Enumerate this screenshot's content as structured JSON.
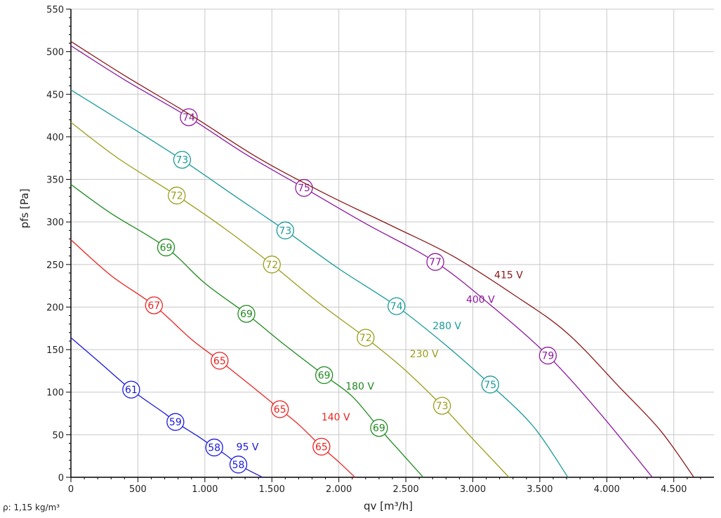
{
  "chart_data": {
    "type": "line",
    "xlabel": "qv [m³/h]",
    "ylabel": "pfs [Pa]",
    "xlim": [
      0,
      4800
    ],
    "ylim": [
      0,
      550
    ],
    "x_ticks": [
      0,
      500,
      1000,
      1500,
      2000,
      2500,
      3000,
      3500,
      4000,
      4500
    ],
    "x_tick_labels": [
      "0",
      "500",
      "1.000",
      "1.500",
      "2.000",
      "2.500",
      "3.000",
      "3.500",
      "4.000",
      "4.500"
    ],
    "y_ticks": [
      0,
      50,
      100,
      150,
      200,
      250,
      300,
      350,
      400,
      450,
      500,
      550
    ],
    "y_tick_labels": [
      "0",
      "50",
      "100",
      "150",
      "200",
      "250",
      "300",
      "350",
      "400",
      "450",
      "500",
      "550"
    ],
    "grid": true,
    "series": [
      {
        "name": "95 V",
        "color": "#1a1adb",
        "points": [
          [
            0,
            164
          ],
          [
            200,
            137
          ],
          [
            450,
            103
          ],
          [
            700,
            75
          ],
          [
            780,
            65
          ],
          [
            950,
            48
          ],
          [
            1070,
            35
          ],
          [
            1150,
            27
          ],
          [
            1250,
            15
          ],
          [
            1330,
            8
          ],
          [
            1430,
            0
          ]
        ],
        "markers": [
          {
            "x": 450,
            "y": 103,
            "label": "61"
          },
          {
            "x": 780,
            "y": 65,
            "label": "59"
          },
          {
            "x": 1070,
            "y": 35,
            "label": "58"
          },
          {
            "x": 1250,
            "y": 15,
            "label": "58"
          }
        ],
        "name_label_at": [
          1235,
          36
        ]
      },
      {
        "name": "140 V",
        "color": "#e8231e",
        "points": [
          [
            0,
            279
          ],
          [
            300,
            237
          ],
          [
            620,
            202
          ],
          [
            900,
            162
          ],
          [
            1110,
            137
          ],
          [
            1350,
            107
          ],
          [
            1560,
            80
          ],
          [
            1700,
            62
          ],
          [
            1870,
            36
          ],
          [
            2000,
            18
          ],
          [
            2120,
            0
          ]
        ],
        "markers": [
          {
            "x": 620,
            "y": 202,
            "label": "67"
          },
          {
            "x": 1110,
            "y": 137,
            "label": "65"
          },
          {
            "x": 1560,
            "y": 80,
            "label": "65"
          },
          {
            "x": 1870,
            "y": 36,
            "label": "65"
          }
        ],
        "name_label_at": [
          1870,
          71
        ]
      },
      {
        "name": "180 V",
        "color": "#1e8a1e",
        "points": [
          [
            0,
            344
          ],
          [
            300,
            310
          ],
          [
            710,
            270
          ],
          [
            1000,
            228
          ],
          [
            1310,
            192
          ],
          [
            1600,
            155
          ],
          [
            1890,
            120
          ],
          [
            2100,
            95
          ],
          [
            2300,
            58
          ],
          [
            2470,
            28
          ],
          [
            2630,
            0
          ]
        ],
        "markers": [
          {
            "x": 710,
            "y": 270,
            "label": "69"
          },
          {
            "x": 1310,
            "y": 192,
            "label": "69"
          },
          {
            "x": 1890,
            "y": 120,
            "label": "69"
          },
          {
            "x": 2300,
            "y": 58,
            "label": "69"
          }
        ],
        "name_label_at": [
          2050,
          107
        ]
      },
      {
        "name": "230 V",
        "color": "#9c9c1a",
        "points": [
          [
            0,
            417
          ],
          [
            350,
            375
          ],
          [
            790,
            331
          ],
          [
            1150,
            292
          ],
          [
            1500,
            250
          ],
          [
            1850,
            205
          ],
          [
            2200,
            164
          ],
          [
            2480,
            128
          ],
          [
            2770,
            84
          ],
          [
            3000,
            45
          ],
          [
            3270,
            0
          ]
        ],
        "markers": [
          {
            "x": 790,
            "y": 331,
            "label": "72"
          },
          {
            "x": 1500,
            "y": 250,
            "label": "72"
          },
          {
            "x": 2200,
            "y": 164,
            "label": "72"
          },
          {
            "x": 2770,
            "y": 84,
            "label": "73"
          }
        ],
        "name_label_at": [
          2530,
          145
        ]
      },
      {
        "name": "280 V",
        "color": "#1a9a9a",
        "points": [
          [
            0,
            455
          ],
          [
            400,
            416
          ],
          [
            830,
            373
          ],
          [
            1200,
            333
          ],
          [
            1600,
            290
          ],
          [
            2000,
            245
          ],
          [
            2430,
            201
          ],
          [
            2800,
            155
          ],
          [
            3130,
            109
          ],
          [
            3450,
            60
          ],
          [
            3710,
            0
          ]
        ],
        "markers": [
          {
            "x": 830,
            "y": 373,
            "label": "73"
          },
          {
            "x": 1600,
            "y": 290,
            "label": "73"
          },
          {
            "x": 2430,
            "y": 201,
            "label": "74"
          },
          {
            "x": 3130,
            "y": 109,
            "label": "75"
          }
        ],
        "name_label_at": [
          2700,
          178
        ]
      },
      {
        "name": "400 V",
        "color": "#8e1a9e",
        "points": [
          [
            0,
            507
          ],
          [
            400,
            467
          ],
          [
            880,
            423
          ],
          [
            1300,
            380
          ],
          [
            1740,
            340
          ],
          [
            2200,
            298
          ],
          [
            2720,
            253
          ],
          [
            3150,
            200
          ],
          [
            3560,
            143
          ],
          [
            3950,
            75
          ],
          [
            4340,
            0
          ]
        ],
        "markers": [
          {
            "x": 880,
            "y": 423,
            "label": "74"
          },
          {
            "x": 1740,
            "y": 340,
            "label": "75"
          },
          {
            "x": 2720,
            "y": 253,
            "label": "77"
          },
          {
            "x": 3560,
            "y": 143,
            "label": "79"
          }
        ],
        "name_label_at": [
          2950,
          209
        ]
      },
      {
        "name": "415 V",
        "color": "#8b1a1a",
        "points": [
          [
            0,
            512
          ],
          [
            400,
            472
          ],
          [
            900,
            425
          ],
          [
            1400,
            375
          ],
          [
            1900,
            333
          ],
          [
            2400,
            295
          ],
          [
            2850,
            260
          ],
          [
            3300,
            215
          ],
          [
            3700,
            170
          ],
          [
            4100,
            105
          ],
          [
            4400,
            55
          ],
          [
            4650,
            0
          ]
        ],
        "markers": [],
        "name_label_at": [
          3160,
          238
        ]
      }
    ]
  },
  "footnote": "ρ: 1,15 kg/m³"
}
